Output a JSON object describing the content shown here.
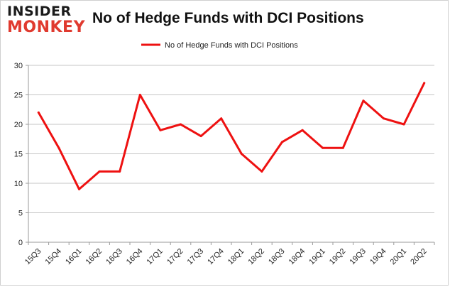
{
  "logo": {
    "line1": "INSIDER",
    "line2": "MONKEY"
  },
  "chart_data": {
    "type": "line",
    "title": "No of Hedge Funds with DCI Positions",
    "categories": [
      "15Q3",
      "15Q4",
      "16Q1",
      "16Q2",
      "16Q3",
      "16Q4",
      "17Q1",
      "17Q2",
      "17Q3",
      "17Q4",
      "18Q1",
      "18Q2",
      "18Q3",
      "18Q4",
      "19Q1",
      "19Q2",
      "19Q3",
      "19Q4",
      "20Q1",
      "20Q2"
    ],
    "series": [
      {
        "name": "No of Hedge Funds with DCI Positions",
        "values": [
          22,
          16,
          9,
          12,
          12,
          25,
          19,
          20,
          18,
          21,
          15,
          12,
          17,
          19,
          16,
          16,
          24,
          21,
          20,
          27
        ],
        "color": "#ee1111"
      }
    ],
    "ylim": [
      0,
      30
    ],
    "yticks": [
      0,
      5,
      10,
      15,
      20,
      25,
      30
    ],
    "grid": true,
    "legend_position": "top-center"
  }
}
